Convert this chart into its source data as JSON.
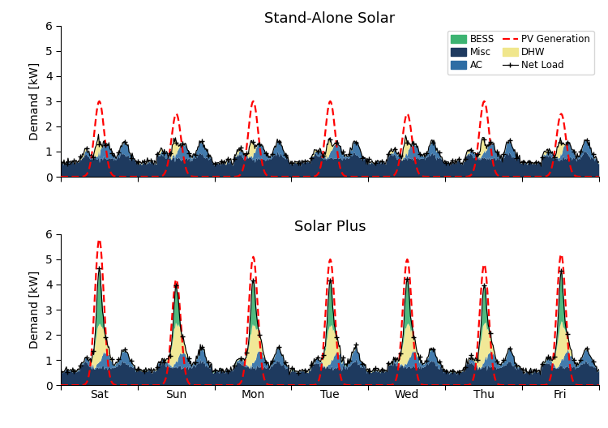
{
  "title_top": "Stand-Alone Solar",
  "title_bottom": "Solar Plus",
  "ylabel": "Demand [kW]",
  "ylim": [
    0,
    6
  ],
  "yticks": [
    0,
    1,
    2,
    3,
    4,
    5,
    6
  ],
  "days": [
    "Sat",
    "Sun",
    "Mon",
    "Tue",
    "Wed",
    "Thu",
    "Fri"
  ],
  "colors": {
    "misc": "#1e3a5f",
    "ac": "#2e6da4",
    "dhw": "#f0e68c",
    "bess": "#3cb371",
    "pv": "#ff0000",
    "net_load": "#000000"
  },
  "pv_scales_top": [
    3.0,
    2.5,
    3.0,
    3.0,
    2.5,
    3.0,
    2.5
  ],
  "pv_scales_bot": [
    5.8,
    4.2,
    5.1,
    5.0,
    5.0,
    4.8,
    5.2
  ]
}
